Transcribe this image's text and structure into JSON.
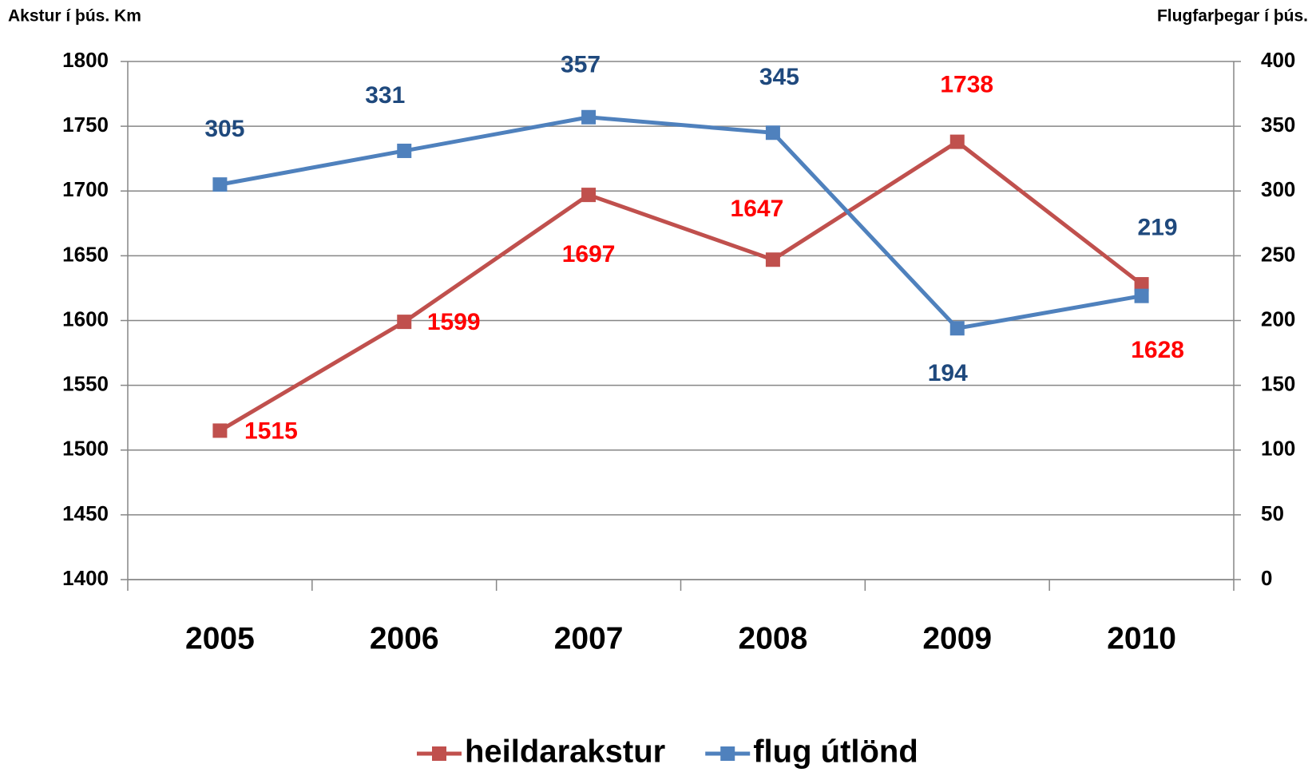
{
  "chart_data": {
    "type": "line",
    "y_label": "Akstur í þús. Km",
    "y2_label": "Flugfarþegar í þús.",
    "categories": [
      "2005",
      "2006",
      "2007",
      "2008",
      "2009",
      "2010"
    ],
    "series": [
      {
        "name": "heildarakstur",
        "color": "#c0504d",
        "label_color": "#ff0000",
        "values": [
          1515,
          1599,
          1697,
          1647,
          1738,
          1628
        ]
      },
      {
        "name": "flug útlönd",
        "color": "#4f81bd",
        "label_color": "#1f497d",
        "axis": "y2",
        "values": [
          305,
          331,
          357,
          345,
          194,
          219
        ]
      }
    ],
    "ylim": [
      1400,
      1800
    ],
    "yticks": [
      1400,
      1450,
      1500,
      1550,
      1600,
      1650,
      1700,
      1750,
      1800
    ],
    "y2lim": [
      0,
      400
    ],
    "y2ticks": [
      0,
      50,
      100,
      150,
      200,
      250,
      300,
      350,
      400
    ],
    "grid": true,
    "legend": "bottom"
  }
}
